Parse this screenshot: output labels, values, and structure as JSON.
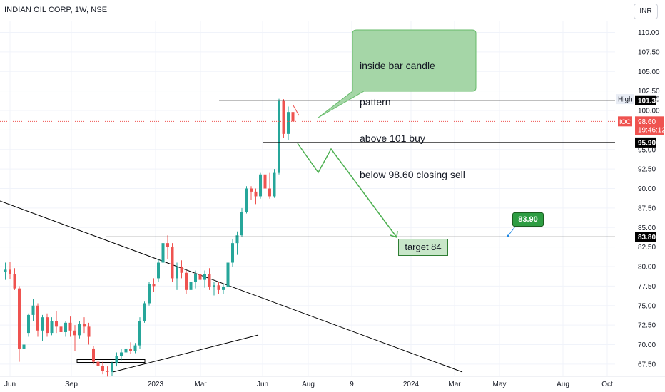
{
  "header": {
    "symbol_title": "INDIAN OIL CORP, 1W, NSE",
    "currency": "INR"
  },
  "chart_data": {
    "type": "candlestick",
    "ylim": [
      66.5,
      112.5
    ],
    "y_ticks": [
      67.5,
      70,
      72.5,
      75,
      77.5,
      80,
      82.5,
      85,
      87.5,
      90,
      92.5,
      95,
      97.5,
      100,
      102.5,
      105,
      107.5,
      110
    ],
    "y_tick_labels": [
      "67.50",
      "70.00",
      "72.50",
      "75.00",
      "77.50",
      "80.00",
      "82.50",
      "85.00",
      "87.50",
      "90.00",
      "92.50",
      "95.00",
      "97.50",
      "100.00",
      "102.50",
      "105.00",
      "107.50",
      "110.00"
    ],
    "x_labels": [
      "Jun",
      "Sep",
      "2023",
      "Mar",
      "Jun",
      "Aug",
      "9",
      "2024",
      "Mar",
      "May",
      "Aug",
      "Oct"
    ],
    "candles": [
      [
        79.3,
        80.5,
        78.3,
        79.6
      ],
      [
        79.6,
        80.6,
        78.4,
        79.0
      ],
      [
        79.0,
        79.8,
        77.0,
        77.2
      ],
      [
        77.2,
        77.5,
        67.8,
        69.5
      ],
      [
        69.5,
        70.2,
        67.2,
        70.0
      ],
      [
        71.5,
        74.0,
        71.0,
        73.8
      ],
      [
        73.8,
        75.8,
        73.0,
        75.0
      ],
      [
        75.0,
        75.3,
        71.0,
        71.8
      ],
      [
        71.8,
        73.8,
        70.5,
        73.5
      ],
      [
        73.5,
        74.0,
        71.0,
        71.5
      ],
      [
        71.5,
        73.5,
        71.2,
        73.0
      ],
      [
        73.0,
        74.3,
        71.5,
        72.3
      ],
      [
        72.3,
        73.0,
        70.8,
        71.6
      ],
      [
        71.6,
        73.0,
        71.0,
        72.8
      ],
      [
        72.8,
        73.6,
        71.0,
        71.8
      ],
      [
        71.8,
        72.5,
        69.2,
        71.2
      ],
      [
        71.2,
        73.0,
        70.8,
        72.6
      ],
      [
        72.6,
        73.5,
        71.5,
        72.3
      ],
      [
        72.3,
        72.8,
        70.0,
        71.0
      ],
      [
        69.5,
        69.8,
        67.5,
        67.8
      ],
      [
        67.8,
        68.2,
        66.8,
        67.3
      ],
      [
        67.3,
        67.8,
        66.2,
        66.6
      ],
      [
        66.6,
        67.2,
        65.9,
        66.5
      ],
      [
        66.5,
        67.8,
        66.0,
        67.6
      ],
      [
        67.6,
        69.0,
        67.2,
        68.5
      ],
      [
        68.5,
        69.5,
        68.0,
        69.0
      ],
      [
        69.0,
        69.8,
        68.5,
        69.5
      ],
      [
        69.5,
        70.3,
        68.8,
        69.2
      ],
      [
        69.2,
        70.2,
        68.9,
        69.9
      ],
      [
        69.9,
        73.5,
        69.5,
        73.0
      ],
      [
        73.0,
        75.5,
        72.8,
        75.3
      ],
      [
        75.3,
        78.0,
        75.0,
        77.8
      ],
      [
        77.8,
        78.5,
        76.8,
        77.5
      ],
      [
        78.5,
        81.0,
        78.0,
        80.5
      ],
      [
        80.5,
        84.0,
        79.8,
        83.0
      ],
      [
        83.0,
        84.0,
        81.0,
        82.5
      ],
      [
        82.5,
        83.0,
        78.0,
        78.5
      ],
      [
        78.5,
        80.5,
        77.0,
        80.0
      ],
      [
        80.0,
        80.8,
        78.5,
        79.2
      ],
      [
        79.2,
        79.5,
        76.5,
        77.0
      ],
      [
        77.0,
        78.5,
        76.0,
        78.0
      ],
      [
        78.0,
        79.5,
        77.2,
        79.0
      ],
      [
        79.0,
        79.8,
        77.5,
        78.3
      ],
      [
        78.3,
        79.5,
        77.3,
        79.0
      ],
      [
        79.0,
        79.8,
        77.0,
        77.4
      ],
      [
        77.4,
        78.0,
        76.3,
        77.6
      ],
      [
        77.6,
        78.0,
        76.5,
        77.0
      ],
      [
        77.0,
        77.8,
        76.5,
        77.4
      ],
      [
        77.4,
        81.0,
        77.2,
        80.5
      ],
      [
        80.5,
        83.5,
        80.0,
        83.0
      ],
      [
        83.0,
        84.5,
        81.5,
        84.0
      ],
      [
        84.0,
        87.5,
        83.8,
        87.0
      ],
      [
        87.0,
        90.3,
        86.8,
        90.0
      ],
      [
        90.0,
        90.3,
        88.5,
        89.6
      ],
      [
        89.6,
        90.0,
        88.0,
        89.0
      ],
      [
        89.0,
        92.0,
        88.7,
        91.8
      ],
      [
        91.8,
        93.0,
        89.5,
        90.0
      ],
      [
        90.0,
        92.0,
        88.7,
        89.0
      ],
      [
        89.0,
        92.5,
        88.8,
        92.0
      ],
      [
        92.0,
        101.5,
        91.8,
        101.2
      ],
      [
        101.2,
        101.45,
        96.5,
        97.0
      ],
      [
        97.0,
        100.5,
        96.2,
        99.8
      ],
      [
        99.8,
        100.5,
        98.2,
        98.6
      ]
    ],
    "horizontal_levels": [
      101.3,
      95.9,
      83.8
    ],
    "level_labels": [
      "101.30",
      "95.90",
      "83.80"
    ],
    "high": {
      "label": "High",
      "value": "101.45"
    },
    "last_price": {
      "symbol": "IOC",
      "value": "98.60",
      "countdown": "19:46:12"
    },
    "annotation_text": [
      "inside bar candle",
      "pattern",
      "above 101 buy",
      "below 98.60 closing sell"
    ],
    "target_label": "target 84",
    "flag_label": "83.90",
    "colors": {
      "up": "#26a69a",
      "down": "#ef5350",
      "arrow": "#4caf50",
      "callout": "#a5d6a7",
      "line": "#000000"
    }
  }
}
